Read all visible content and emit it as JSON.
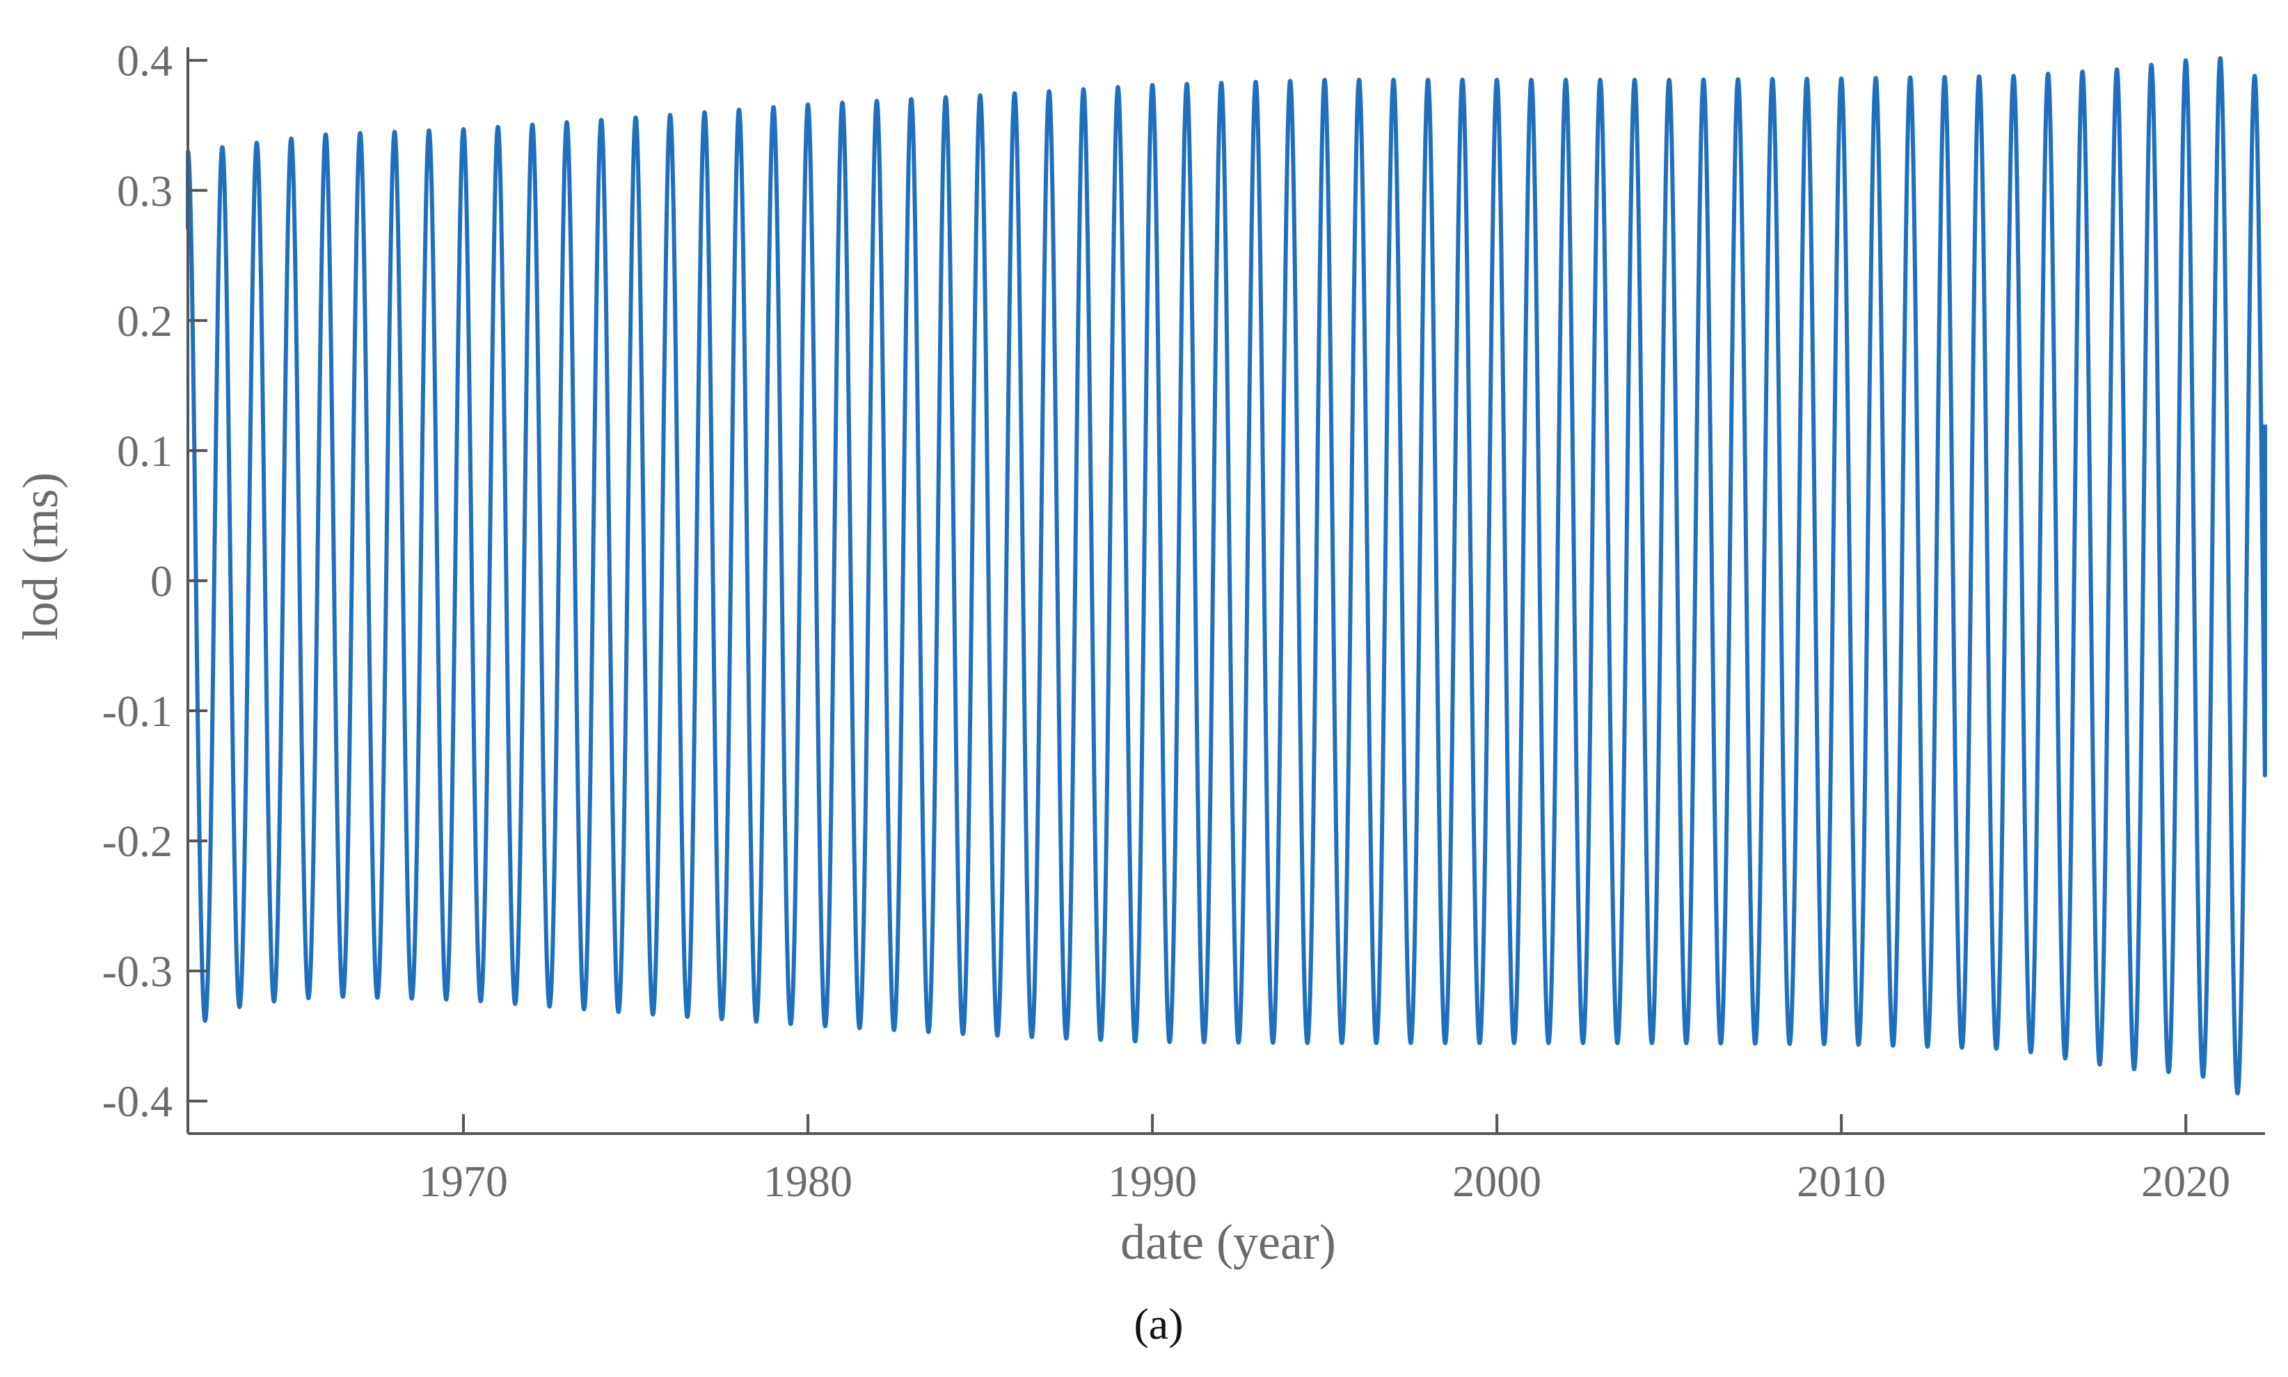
{
  "chart_data": {
    "type": "line",
    "xlabel": "date (year)",
    "ylabel": "lod (ms)",
    "panel_label": "(a)",
    "xlim": [
      1962.0,
      2022.3
    ],
    "ylim": [
      -0.425,
      0.41
    ],
    "x_ticks": [
      1970,
      1980,
      1990,
      2000,
      2010,
      2020
    ],
    "x_tick_labels": [
      "1970",
      "1980",
      "1990",
      "2000",
      "2010",
      "2020"
    ],
    "y_ticks": [
      0.4,
      0.3,
      0.2,
      0.1,
      0,
      -0.1,
      -0.2,
      -0.3,
      -0.4
    ],
    "y_tick_labels": [
      "0.4",
      "0.3",
      "0.2",
      "0.1",
      "0",
      "-0.1",
      "-0.2",
      "-0.3",
      "-0.4"
    ],
    "grid": false,
    "series": [
      {
        "color": "#1f6fbf",
        "periodic_component": {
          "period_years": 1.0,
          "secondary_period_years": 0.5,
          "secondary_relative_amplitude": 0.04,
          "start_x": 1962.0,
          "start_y": 0.27,
          "end_x": 2022.3,
          "end_y": 0.12
        },
        "peak_envelope": {
          "x": [
            1962.1,
            1963.5,
            1966,
            1970,
            1975,
            1980,
            1985,
            1990,
            1995,
            2000,
            2005,
            2010,
            2015,
            2018,
            2020,
            2021.2,
            2022
          ],
          "y": [
            0.33,
            0.335,
            0.343,
            0.347,
            0.356,
            0.366,
            0.373,
            0.381,
            0.385,
            0.385,
            0.385,
            0.386,
            0.388,
            0.393,
            0.4,
            0.402,
            0.388
          ]
        },
        "trough_envelope": {
          "x": [
            1962.5,
            1963.7,
            1966,
            1970,
            1975,
            1980,
            1985,
            1990,
            1995,
            2000,
            2005,
            2010,
            2015,
            2018,
            2020,
            2021,
            2021.7
          ],
          "y": [
            -0.365,
            -0.352,
            -0.346,
            -0.349,
            -0.36,
            -0.37,
            -0.378,
            -0.384,
            -0.385,
            -0.385,
            -0.385,
            -0.386,
            -0.39,
            -0.405,
            -0.41,
            -0.415,
            -0.43
          ]
        }
      }
    ]
  }
}
